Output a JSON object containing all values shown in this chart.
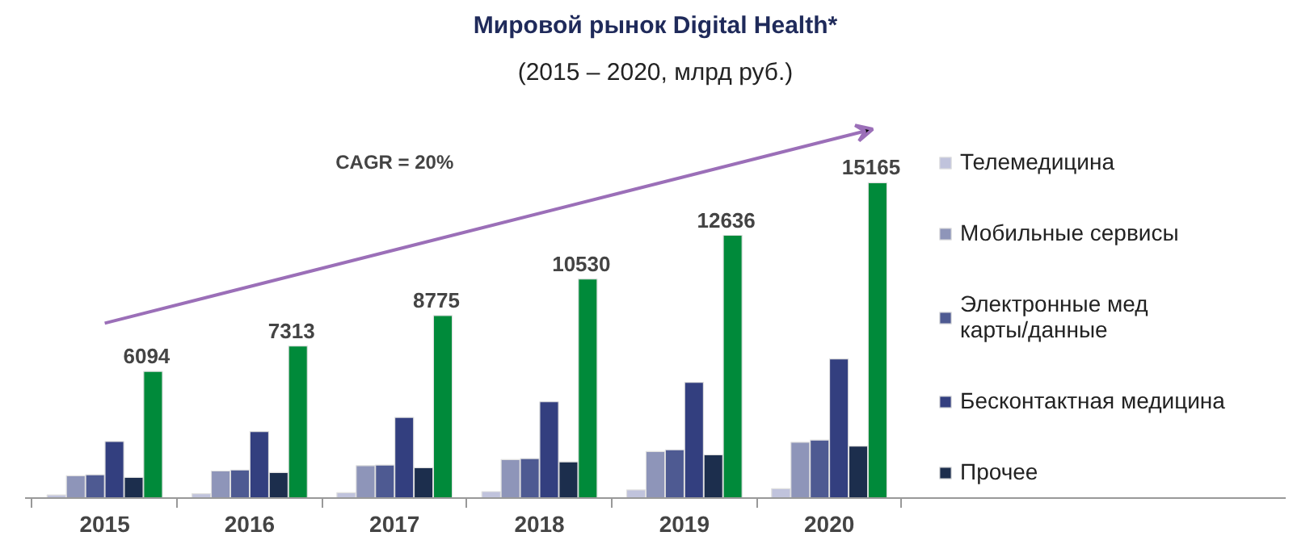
{
  "chart_data": {
    "type": "bar",
    "title": "Мировой рынок Digital Health*",
    "subtitle": "(2015 – 2020, млрд руб.)",
    "categories": [
      "2015",
      "2016",
      "2017",
      "2018",
      "2019",
      "2020"
    ],
    "series": [
      {
        "name": "Телемедицина",
        "color": "#c0c3dc",
        "values": [
          150,
          210,
          260,
          310,
          390,
          450
        ]
      },
      {
        "name": "Мобильные сервисы",
        "color": "#8e95b9",
        "values": [
          1075,
          1300,
          1560,
          1850,
          2240,
          2680
        ]
      },
      {
        "name": "Электронные мед карты/данные",
        "color": "#4e5a92",
        "values": [
          1120,
          1350,
          1590,
          1900,
          2320,
          2790
        ]
      },
      {
        "name": "Бесконтактная медицина",
        "color": "#333f7f",
        "values": [
          2720,
          3200,
          3880,
          4630,
          5570,
          6690
        ]
      },
      {
        "name": "Прочее",
        "color": "#1c2e4d",
        "values": [
          995,
          1225,
          1460,
          1740,
          2080,
          2500
        ]
      },
      {
        "color": "#008a3a",
        "values": [
          6094,
          7313,
          8775,
          10530,
          12636,
          15165
        ],
        "value_labels": [
          "6094",
          "7313",
          "8775",
          "10530",
          "12636",
          "15165"
        ]
      }
    ],
    "annotations": [
      "CAGR = 20%"
    ],
    "legend": "right",
    "grid": false
  }
}
